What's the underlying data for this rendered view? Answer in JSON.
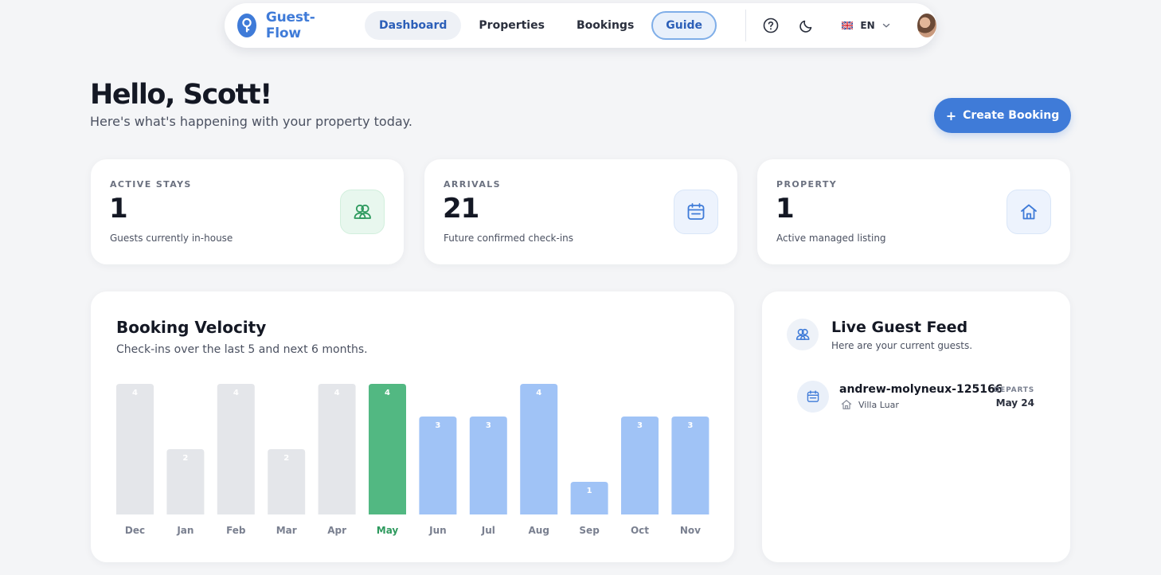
{
  "nav": {
    "brand": "Guest-Flow",
    "links": [
      {
        "label": "Dashboard"
      },
      {
        "label": "Properties"
      },
      {
        "label": "Bookings"
      },
      {
        "label": "Guide"
      }
    ],
    "language": "EN",
    "icons": [
      "help-icon",
      "moon-icon",
      "flag-uk-icon",
      "chevron-down-icon"
    ]
  },
  "greeting": {
    "title": "Hello, Scott!",
    "subtitle": "Here's what's happening with your property today."
  },
  "create_button": {
    "label": "Create Booking",
    "icon": "plus-icon"
  },
  "stats": [
    {
      "label": "ACTIVE STAYS",
      "value": "1",
      "desc": "Guests currently in-house",
      "icon": "users-icon",
      "accent": "#2e9a5e"
    },
    {
      "label": "ARRIVALS",
      "value": "21",
      "desc": "Future confirmed check-ins",
      "icon": "calendar-icon",
      "accent": "#3f7bd8"
    },
    {
      "label": "PROPERTY",
      "value": "1",
      "desc": "Active managed listing",
      "icon": "home-icon",
      "accent": "#3f7bd8"
    }
  ],
  "velocity": {
    "title": "Booking Velocity",
    "subtitle": "Check-ins over the last 5 and next 6 months."
  },
  "chart_data": {
    "type": "bar",
    "categories": [
      "Dec",
      "Jan",
      "Feb",
      "Mar",
      "Apr",
      "May",
      "Jun",
      "Jul",
      "Aug",
      "Sep",
      "Oct",
      "Nov"
    ],
    "values": [
      4,
      2,
      4,
      2,
      4,
      4,
      3,
      3,
      4,
      1,
      3,
      3
    ],
    "current_index": 5,
    "colors": {
      "past": "#e4e6ea",
      "current": "#52b882",
      "future": "#a0c3f6"
    },
    "ylim": [
      0,
      4
    ],
    "grid": false,
    "legend": "none"
  },
  "feed": {
    "title": "Live Guest Feed",
    "subtitle": "Here are your current guests.",
    "guests": [
      {
        "name": "andrew-molyneux-125166",
        "property": "Villa Luar",
        "depart_label": "DEPARTS",
        "depart_date": "May 24"
      }
    ]
  },
  "colors": {
    "accent": "#3f7bd8",
    "background": "#f4f5f7",
    "success": "#52b882"
  }
}
